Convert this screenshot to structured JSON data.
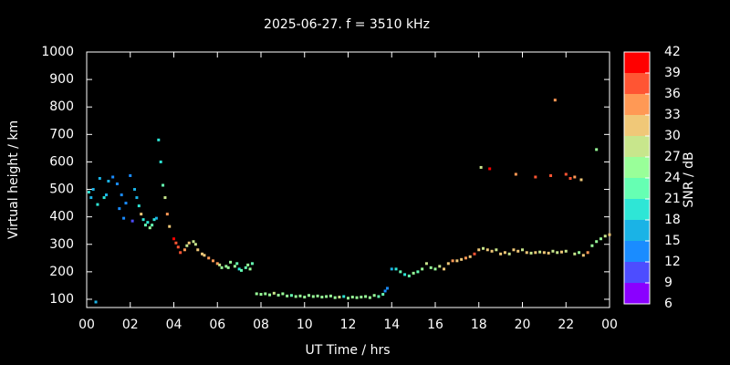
{
  "chart_data": {
    "type": "scatter",
    "title": "2025-06-27. f = 3510 kHz",
    "xlabel": "UT Time / hrs",
    "ylabel": "Virtual height / km",
    "colorbar_label": "SNR / dB",
    "xlim": [
      0,
      24
    ],
    "xticks": [
      {
        "value": 0,
        "label": "00"
      },
      {
        "value": 2,
        "label": "02"
      },
      {
        "value": 4,
        "label": "04"
      },
      {
        "value": 6,
        "label": "06"
      },
      {
        "value": 8,
        "label": "08"
      },
      10,
      12,
      14,
      16,
      18,
      20,
      22,
      {
        "value": 24,
        "label": "00"
      }
    ],
    "ylim": [
      70,
      1000
    ],
    "yticks": [
      100,
      200,
      300,
      400,
      500,
      600,
      700,
      800,
      900,
      1000
    ],
    "clim": [
      6,
      42
    ],
    "cticks": [
      6,
      9,
      12,
      15,
      18,
      21,
      24,
      27,
      30,
      33,
      36,
      39,
      42
    ],
    "colorscale": [
      "#8a00ff",
      "#4d4dff",
      "#1a8cff",
      "#1ab3e6",
      "#2ee6d6",
      "#66ffb3",
      "#99ff99",
      "#c8e68c",
      "#f0c878",
      "#ff9955",
      "#ff5533",
      "#ff0000"
    ],
    "x": [
      0.1,
      0.2,
      0.3,
      0.42,
      0.5,
      0.6,
      0.8,
      0.9,
      1.0,
      1.2,
      1.4,
      1.5,
      1.6,
      1.7,
      1.8,
      2.0,
      2.1,
      2.2,
      2.3,
      2.4,
      2.5,
      2.6,
      2.7,
      2.8,
      2.9,
      3.0,
      3.1,
      3.2,
      3.3,
      3.4,
      3.5,
      3.6,
      3.7,
      3.8,
      4.0,
      4.1,
      4.2,
      4.3,
      4.5,
      4.6,
      4.7,
      4.9,
      5.0,
      5.1,
      5.3,
      5.4,
      5.6,
      5.8,
      6.0,
      6.1,
      6.2,
      6.4,
      6.5,
      6.6,
      6.8,
      6.9,
      7.0,
      7.1,
      7.3,
      7.4,
      7.5,
      7.6,
      7.8,
      8.0,
      8.2,
      8.4,
      8.6,
      8.8,
      9.0,
      9.2,
      9.4,
      9.6,
      9.8,
      10.0,
      10.2,
      10.4,
      10.6,
      10.8,
      11.0,
      11.2,
      11.4,
      11.6,
      11.8,
      12.0,
      12.2,
      12.4,
      12.6,
      12.8,
      13.0,
      13.2,
      13.4,
      13.6,
      13.7,
      13.8,
      14.0,
      14.2,
      14.4,
      14.6,
      14.8,
      15.0,
      15.2,
      15.4,
      15.6,
      15.8,
      16.0,
      16.2,
      16.4,
      16.6,
      16.8,
      17.0,
      17.2,
      17.4,
      17.6,
      17.8,
      18.0,
      18.2,
      18.4,
      18.6,
      18.8,
      19.0,
      19.2,
      19.4,
      19.6,
      19.8,
      20.0,
      20.2,
      20.4,
      20.6,
      20.8,
      21.0,
      21.2,
      21.4,
      21.6,
      21.8,
      22.0,
      22.4,
      22.6,
      22.8,
      23.0,
      23.2,
      23.4,
      23.6,
      23.8,
      24.0,
      18.1,
      18.5,
      19.7,
      20.6,
      21.3,
      21.5,
      22.0,
      22.2,
      22.4,
      22.7,
      23.4
    ],
    "y": [
      490,
      470,
      500,
      90,
      445,
      540,
      470,
      480,
      530,
      545,
      520,
      430,
      480,
      395,
      450,
      550,
      385,
      500,
      470,
      440,
      410,
      390,
      370,
      380,
      360,
      370,
      390,
      395,
      680,
      600,
      515,
      470,
      410,
      365,
      320,
      305,
      290,
      270,
      280,
      295,
      305,
      310,
      300,
      280,
      265,
      260,
      250,
      240,
      230,
      225,
      215,
      220,
      215,
      235,
      220,
      230,
      210,
      205,
      215,
      225,
      210,
      230,
      120,
      118,
      120,
      116,
      122,
      115,
      120,
      112,
      114,
      110,
      112,
      108,
      114,
      110,
      112,
      108,
      110,
      112,
      106,
      108,
      110,
      104,
      108,
      106,
      108,
      110,
      106,
      114,
      110,
      118,
      130,
      140,
      210,
      210,
      200,
      190,
      185,
      195,
      200,
      210,
      230,
      215,
      210,
      220,
      210,
      230,
      240,
      240,
      245,
      250,
      255,
      265,
      280,
      285,
      280,
      275,
      280,
      265,
      270,
      265,
      280,
      275,
      280,
      270,
      268,
      270,
      272,
      270,
      268,
      275,
      270,
      272,
      275,
      265,
      270,
      260,
      270,
      295,
      310,
      320,
      330,
      335,
      580,
      575,
      555,
      545,
      550,
      825,
      555,
      540,
      545,
      535,
      645
    ],
    "snr": [
      18,
      16,
      17,
      15,
      19,
      17,
      18,
      17,
      15,
      14,
      13,
      13,
      12,
      12,
      13,
      12,
      11,
      15,
      17,
      19,
      30,
      20,
      22,
      20,
      24,
      23,
      20,
      17,
      19,
      20,
      21,
      28,
      33,
      30,
      40,
      38,
      37,
      37,
      34,
      28,
      31,
      27,
      29,
      32,
      30,
      32,
      34,
      35,
      33,
      27,
      24,
      26,
      25,
      24,
      25,
      23,
      20,
      22,
      23,
      25,
      24,
      23,
      25,
      24,
      26,
      25,
      27,
      24,
      26,
      24,
      23,
      25,
      24,
      26,
      25,
      24,
      26,
      25,
      24,
      26,
      25,
      27,
      18,
      24,
      25,
      26,
      24,
      25,
      24,
      26,
      23,
      21,
      12,
      14,
      16,
      18,
      21,
      20,
      22,
      24,
      23,
      25,
      27,
      24,
      26,
      28,
      30,
      32,
      33,
      31,
      30,
      33,
      31,
      37,
      30,
      29,
      31,
      30,
      28,
      30,
      32,
      29,
      30,
      31,
      29,
      30,
      28,
      30,
      29,
      31,
      30,
      29,
      28,
      30,
      29,
      27,
      26,
      31,
      34,
      25,
      24,
      26,
      28,
      30,
      27,
      41,
      35,
      37,
      38,
      35,
      36,
      36,
      33,
      30,
      24
    ]
  }
}
